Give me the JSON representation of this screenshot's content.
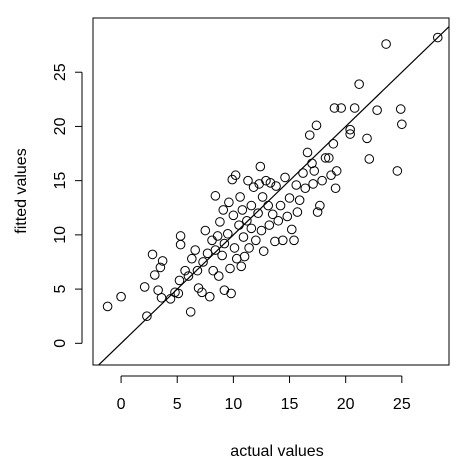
{
  "chart_data": {
    "type": "scatter",
    "x_label": "actual values",
    "y_label": "fitted values",
    "xlim": [
      -2.5,
      29.2
    ],
    "ylim": [
      -2,
      30
    ],
    "xticks": [
      0,
      5,
      10,
      15,
      20,
      25
    ],
    "yticks": [
      0,
      5,
      10,
      15,
      20,
      25
    ],
    "color": "#000000",
    "reference_line": {
      "intercept": 0,
      "slope": 1
    },
    "x": [
      -1.2,
      0,
      2.3,
      2.8,
      2.1,
      3.0,
      3.3,
      3.6,
      3.7,
      3.5,
      4.4,
      4.8,
      5.1,
      5.2,
      5.3,
      5.3,
      5.7,
      6.0,
      6.2,
      6.3,
      6.6,
      6.8,
      6.9,
      7.2,
      7.3,
      7.5,
      7.7,
      7.9,
      8.1,
      8.2,
      8.4,
      8.4,
      8.6,
      8.7,
      8.8,
      9.0,
      9.1,
      9.2,
      9.2,
      9.5,
      9.6,
      9.7,
      9.8,
      9.9,
      10.0,
      10.1,
      10.2,
      10.3,
      10.5,
      10.6,
      10.7,
      10.8,
      10.9,
      11.0,
      11.2,
      11.3,
      11.4,
      11.6,
      11.6,
      11.8,
      12.0,
      12.2,
      12.3,
      12.4,
      12.5,
      12.6,
      12.7,
      12.9,
      13.1,
      13.2,
      13.3,
      13.5,
      13.7,
      13.8,
      14.0,
      14.2,
      14.4,
      14.6,
      14.8,
      15.0,
      15.2,
      15.4,
      15.6,
      15.7,
      15.9,
      16.2,
      16.4,
      16.6,
      16.8,
      17.0,
      17.1,
      17.2,
      17.4,
      17.5,
      17.7,
      17.9,
      18.2,
      18.5,
      18.7,
      18.9,
      19.0,
      19.1,
      19.2,
      19.6,
      20.4,
      20.4,
      20.8,
      21.2,
      21.9,
      22.1,
      22.8,
      23.6,
      24.6,
      24.9,
      25.0,
      28.2
    ],
    "y": [
      3.4,
      4.3,
      2.5,
      8.2,
      5.2,
      6.3,
      4.9,
      4.2,
      7.6,
      7.0,
      4.1,
      4.7,
      4.6,
      5.8,
      9.1,
      9.9,
      6.7,
      6.2,
      2.9,
      7.8,
      8.6,
      6.7,
      5.1,
      4.7,
      7.5,
      10.4,
      8.3,
      4.3,
      9.5,
      6.7,
      8.6,
      13.6,
      9.9,
      6.2,
      11.2,
      8.1,
      12.3,
      4.9,
      9.2,
      10.1,
      13.0,
      6.9,
      4.6,
      15.1,
      11.8,
      8.8,
      15.5,
      7.8,
      10.9,
      13.5,
      7.1,
      12.3,
      9.8,
      8.0,
      11.3,
      15.0,
      8.8,
      12.7,
      10.6,
      14.4,
      9.5,
      12.0,
      14.7,
      16.3,
      10.4,
      13.5,
      8.5,
      15.0,
      12.7,
      10.9,
      14.8,
      11.9,
      9.4,
      14.5,
      11.3,
      12.7,
      9.5,
      15.3,
      11.7,
      13.4,
      10.5,
      9.5,
      14.6,
      12.1,
      13.2,
      15.7,
      14.3,
      17.6,
      19.2,
      16.6,
      14.7,
      15.9,
      20.1,
      12.1,
      12.7,
      15.0,
      17.1,
      17.1,
      15.5,
      18.4,
      21.7,
      14.3,
      15.9,
      21.7,
      19.7,
      19.3,
      21.7,
      23.9,
      18.9,
      17.0,
      21.5,
      27.6,
      15.9,
      21.6,
      20.2,
      28.2
    ]
  }
}
